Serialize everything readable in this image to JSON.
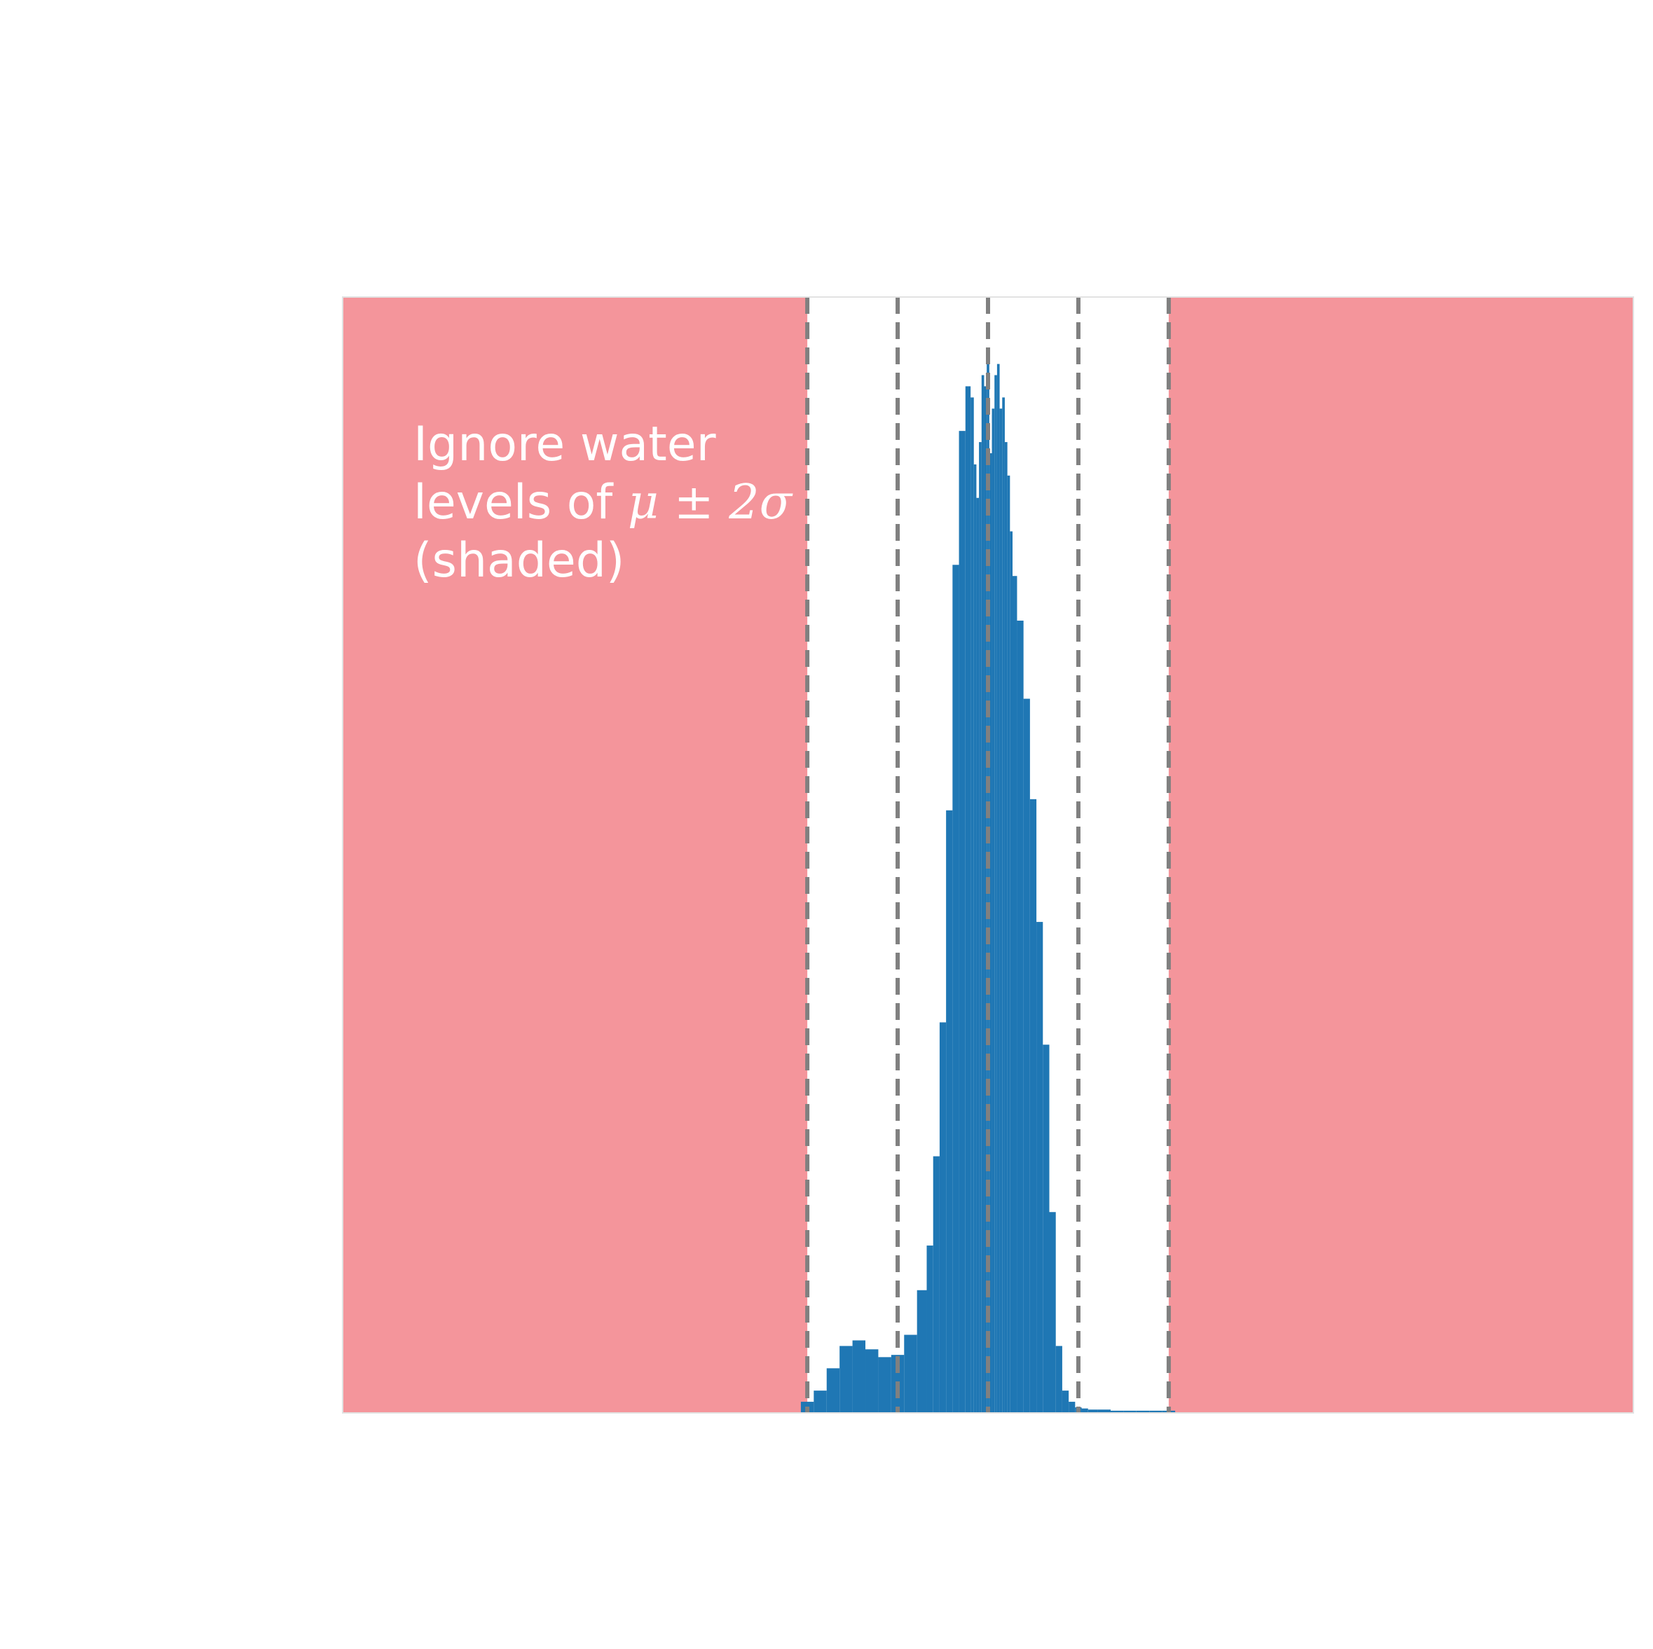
{
  "chart_data": {
    "type": "bar",
    "title": "",
    "xlabel": "",
    "ylabel": "",
    "xlim": [
      -5,
      5
    ],
    "ylim": [
      0,
      1.0
    ],
    "grid": false,
    "legend": null,
    "bar_color": "#1f77b4",
    "shade_color": "#f4959b",
    "dash_color": "#808080",
    "vlines": [
      -1.4,
      -0.7,
      0.0,
      0.7,
      1.4
    ],
    "shaded_regions": [
      [
        -5,
        -1.4
      ],
      [
        1.4,
        5
      ]
    ],
    "annotation": {
      "line1": "Ignore water",
      "line2_prefix": "levels of ",
      "line2_math": "μ ± 2σ",
      "line3": "(shaded)"
    },
    "x": [
      -1.4,
      -1.3,
      -1.2,
      -1.1,
      -1.0,
      -0.9,
      -0.8,
      -0.7,
      -0.6,
      -0.5,
      -0.45,
      -0.4,
      -0.35,
      -0.3,
      -0.25,
      -0.2,
      -0.15,
      -0.12,
      -0.1,
      -0.08,
      -0.06,
      -0.04,
      -0.02,
      0.0,
      0.02,
      0.04,
      0.06,
      0.08,
      0.1,
      0.12,
      0.14,
      0.16,
      0.18,
      0.2,
      0.25,
      0.3,
      0.35,
      0.4,
      0.45,
      0.5,
      0.55,
      0.6,
      0.65,
      0.7,
      0.75,
      0.8,
      0.9,
      1.0,
      1.1,
      1.2,
      1.3,
      1.4
    ],
    "values": [
      0.01,
      0.02,
      0.04,
      0.06,
      0.065,
      0.057,
      0.05,
      0.052,
      0.07,
      0.11,
      0.15,
      0.23,
      0.35,
      0.54,
      0.76,
      0.88,
      0.92,
      0.91,
      0.85,
      0.82,
      0.87,
      0.93,
      0.92,
      0.94,
      0.86,
      0.9,
      0.93,
      0.94,
      0.9,
      0.91,
      0.87,
      0.84,
      0.79,
      0.75,
      0.71,
      0.64,
      0.55,
      0.44,
      0.33,
      0.18,
      0.06,
      0.02,
      0.01,
      0.005,
      0.004,
      0.003,
      0.003,
      0.002,
      0.002,
      0.002,
      0.002,
      0.002
    ]
  }
}
